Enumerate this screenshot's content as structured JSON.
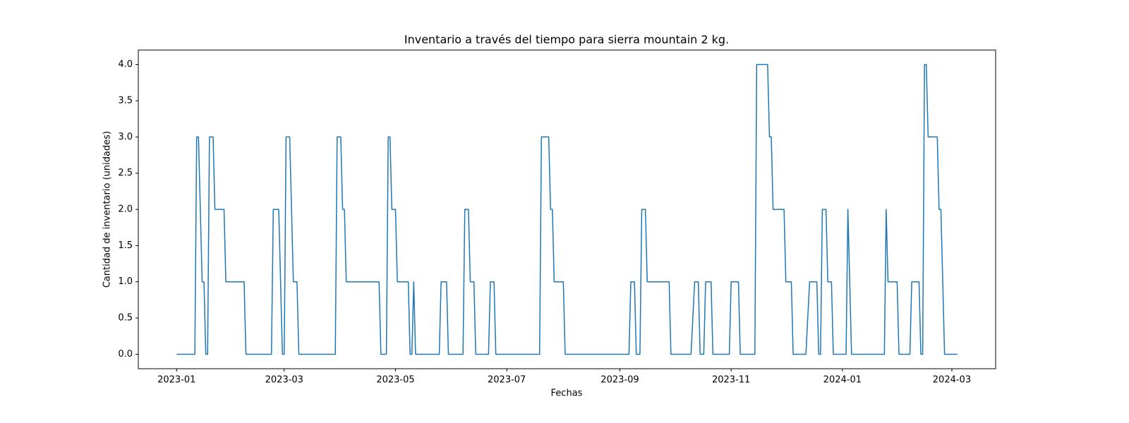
{
  "chart_data": {
    "type": "line",
    "title": "Inventario a través del tiempo para sierra mountain 2 kg.",
    "x_label": "Fechas",
    "y_label": "Cantidad de inventario (unidades)",
    "xlim": [
      "2022-12-11",
      "2024-03-25"
    ],
    "xticks": [
      "2023-01",
      "2023-03",
      "2023-05",
      "2023-07",
      "2023-09",
      "2023-11",
      "2024-01",
      "2024-03"
    ],
    "ylim": [
      -0.2,
      4.2
    ],
    "yticks": [
      {
        "value": 0,
        "label": "0.0"
      },
      {
        "value": 0.5,
        "label": "0.5"
      },
      {
        "value": 1,
        "label": "1.0"
      },
      {
        "value": 1.5,
        "label": "1.5"
      },
      {
        "value": 2,
        "label": "2.0"
      },
      {
        "value": 2.5,
        "label": "2.5"
      },
      {
        "value": 3,
        "label": "3.0"
      },
      {
        "value": 3.5,
        "label": "3.5"
      },
      {
        "value": 4,
        "label": "4.0"
      }
    ],
    "grid": false,
    "x": [
      "2023-01-01",
      "2023-01-11",
      "2023-01-12",
      "2023-01-13",
      "2023-01-15",
      "2023-01-16",
      "2023-01-17",
      "2023-01-18",
      "2023-01-19",
      "2023-01-21",
      "2023-01-22",
      "2023-01-27",
      "2023-01-28",
      "2023-02-07",
      "2023-02-08",
      "2023-02-22",
      "2023-02-23",
      "2023-02-26",
      "2023-02-28",
      "2023-03-01",
      "2023-03-02",
      "2023-03-04",
      "2023-03-06",
      "2023-03-08",
      "2023-03-09",
      "2023-03-29",
      "2023-03-30",
      "2023-04-01",
      "2023-04-02",
      "2023-04-03",
      "2023-04-04",
      "2023-04-22",
      "2023-04-23",
      "2023-04-26",
      "2023-04-27",
      "2023-04-28",
      "2023-04-29",
      "2023-05-01",
      "2023-05-02",
      "2023-05-08",
      "2023-05-09",
      "2023-05-10",
      "2023-05-11",
      "2023-05-12",
      "2023-05-25",
      "2023-05-26",
      "2023-05-29",
      "2023-05-30",
      "2023-06-07",
      "2023-06-08",
      "2023-06-10",
      "2023-06-11",
      "2023-06-13",
      "2023-06-14",
      "2023-06-21",
      "2023-06-22",
      "2023-06-24",
      "2023-06-25",
      "2023-07-19",
      "2023-07-20",
      "2023-07-24",
      "2023-07-25",
      "2023-07-26",
      "2023-07-27",
      "2023-08-01",
      "2023-08-02",
      "2023-09-06",
      "2023-09-07",
      "2023-09-09",
      "2023-09-10",
      "2023-09-12",
      "2023-09-13",
      "2023-09-15",
      "2023-09-16",
      "2023-09-28",
      "2023-09-29",
      "2023-10-10",
      "2023-10-12",
      "2023-10-14",
      "2023-10-15",
      "2023-10-17",
      "2023-10-18",
      "2023-10-21",
      "2023-10-22",
      "2023-10-31",
      "2023-11-01",
      "2023-11-05",
      "2023-11-06",
      "2023-11-14",
      "2023-11-15",
      "2023-11-21",
      "2023-11-22",
      "2023-11-23",
      "2023-11-24",
      "2023-11-30",
      "2023-12-01",
      "2023-12-04",
      "2023-12-05",
      "2023-12-12",
      "2023-12-14",
      "2023-12-18",
      "2023-12-19",
      "2023-12-20",
      "2023-12-21",
      "2023-12-23",
      "2023-12-24",
      "2023-12-26",
      "2023-12-27",
      "2024-01-03",
      "2024-01-04",
      "2024-01-06",
      "2024-01-24",
      "2024-01-25",
      "2024-01-26",
      "2024-01-31",
      "2024-02-01",
      "2024-02-07",
      "2024-02-08",
      "2024-02-12",
      "2024-02-13",
      "2024-02-14",
      "2024-02-15",
      "2024-02-16",
      "2024-02-17",
      "2024-02-22",
      "2024-02-23",
      "2024-02-24",
      "2024-02-26",
      "2024-03-04"
    ],
    "series": [
      {
        "color": "#1f77b4",
        "values": [
          0,
          0,
          3,
          3,
          1,
          1,
          0,
          0,
          3,
          3,
          2,
          2,
          1,
          1,
          0,
          0,
          2,
          2,
          0,
          0,
          3,
          3,
          1,
          1,
          0,
          0,
          3,
          3,
          2,
          2,
          1,
          1,
          0,
          0,
          3,
          3,
          2,
          2,
          1,
          1,
          0,
          0,
          1,
          0,
          0,
          1,
          1,
          0,
          0,
          2,
          2,
          1,
          1,
          0,
          0,
          1,
          1,
          0,
          0,
          3,
          3,
          2,
          2,
          1,
          1,
          0,
          0,
          1,
          1,
          0,
          0,
          2,
          2,
          1,
          1,
          0,
          0,
          1,
          1,
          0,
          0,
          1,
          1,
          0,
          0,
          1,
          1,
          0,
          0,
          4,
          4,
          3,
          3,
          2,
          2,
          1,
          1,
          0,
          0,
          1,
          1,
          0,
          0,
          2,
          2,
          1,
          1,
          0,
          0,
          2,
          0,
          0,
          2,
          1,
          1,
          0,
          0,
          1,
          1,
          0,
          0,
          4,
          4,
          3,
          3,
          2,
          2,
          0,
          0
        ]
      }
    ]
  }
}
